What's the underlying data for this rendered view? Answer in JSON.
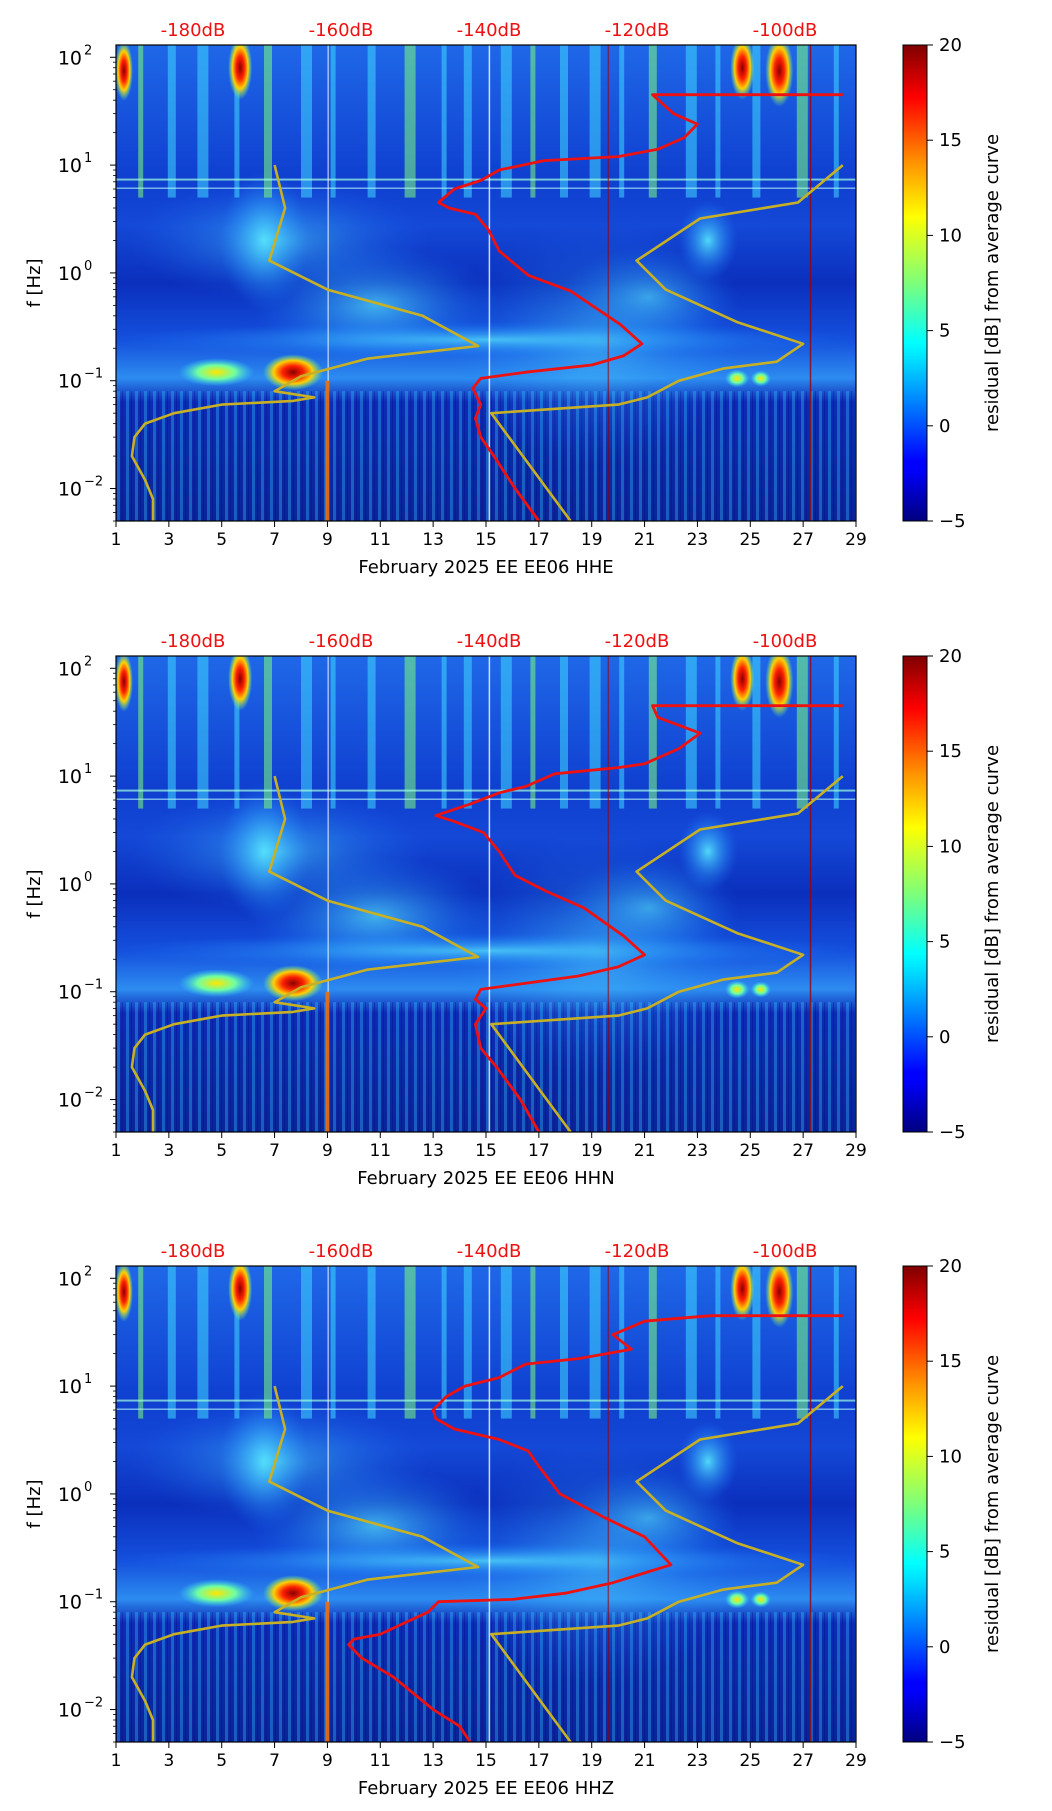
{
  "chart_data": [
    {
      "type": "heatmap",
      "title": "February 2025 EE EE06  HHE",
      "xlabel": "February 2025 EE EE06  HHE",
      "ylabel": "f [Hz]",
      "xlim": [
        1,
        29
      ],
      "ylim": [
        0.005,
        130
      ],
      "yscale": "log",
      "x_ticks": [
        "1",
        "3",
        "5",
        "7",
        "9",
        "11",
        "13",
        "15",
        "17",
        "19",
        "21",
        "23",
        "25",
        "27",
        "29"
      ],
      "y_ticks": [
        {
          "base": "10",
          "exp": "2"
        },
        {
          "base": "10",
          "exp": "1"
        },
        {
          "base": "10",
          "exp": "0"
        },
        {
          "base": "10",
          "exp": "−1"
        },
        {
          "base": "10",
          "exp": "−2"
        }
      ],
      "top_labels": [
        "-180dB",
        "-160dB",
        "-140dB",
        "-120dB",
        "-100dB"
      ],
      "colorbar": {
        "label": "residual [dB] from average curve",
        "ticks": [
          "20",
          "15",
          "10",
          "5",
          "0",
          "−5"
        ],
        "range": [
          -5,
          20
        ]
      },
      "series": [
        {
          "name": "average PSD curve",
          "color": "#ee1111",
          "points": [
            [
              28.5,
              45
            ],
            [
              21.3,
              45
            ],
            [
              22.1,
              30
            ],
            [
              23.0,
              24
            ],
            [
              22.5,
              18
            ],
            [
              21.5,
              14
            ],
            [
              20.0,
              12
            ],
            [
              17.2,
              11
            ],
            [
              15.5,
              9
            ],
            [
              14.8,
              7.2
            ],
            [
              13.8,
              6
            ],
            [
              13.2,
              4.5
            ],
            [
              13.6,
              4.0
            ],
            [
              14.6,
              3.5
            ],
            [
              15.1,
              2.5
            ],
            [
              15.5,
              1.6
            ],
            [
              16.6,
              0.95
            ],
            [
              18.2,
              0.68
            ],
            [
              20.1,
              0.33
            ],
            [
              20.9,
              0.22
            ],
            [
              20.2,
              0.17
            ],
            [
              19.0,
              0.14
            ],
            [
              16.5,
              0.12
            ],
            [
              14.8,
              0.105
            ],
            [
              14.5,
              0.085
            ],
            [
              14.8,
              0.06
            ],
            [
              14.6,
              0.045
            ],
            [
              14.8,
              0.03
            ],
            [
              15.3,
              0.02
            ],
            [
              16.1,
              0.01
            ],
            [
              17.0,
              0.005
            ]
          ]
        },
        {
          "name": "noise model",
          "color": "#c8b024",
          "points": [
            [
              7.0,
              10
            ],
            [
              7.4,
              4.0
            ],
            [
              6.8,
              1.3
            ],
            [
              9.0,
              0.7
            ],
            [
              12.6,
              0.4
            ],
            [
              14.7,
              0.21
            ],
            [
              10.5,
              0.16
            ],
            [
              8.0,
              0.11
            ],
            [
              7.0,
              0.08
            ],
            [
              8.5,
              0.07
            ],
            [
              7.7,
              0.065
            ],
            [
              5.0,
              0.06
            ],
            [
              3.2,
              0.05
            ],
            [
              2.1,
              0.04
            ],
            [
              1.7,
              0.03
            ],
            [
              1.6,
              0.02
            ],
            [
              2.1,
              0.012
            ],
            [
              2.4,
              0.008
            ],
            [
              2.4,
              0.005
            ]
          ]
        },
        {
          "name": "noise model (high)",
          "color": "#c8b024",
          "points": [
            [
              18.2,
              0.005
            ],
            [
              15.2,
              0.05
            ],
            [
              20.0,
              0.06
            ],
            [
              21.1,
              0.07
            ],
            [
              22.3,
              0.1
            ],
            [
              24.0,
              0.13
            ],
            [
              26.0,
              0.15
            ],
            [
              27.0,
              0.22
            ],
            [
              24.5,
              0.35
            ],
            [
              21.8,
              0.7
            ],
            [
              20.7,
              1.3
            ],
            [
              23.1,
              3.2
            ],
            [
              26.8,
              4.5
            ],
            [
              28.5,
              10
            ]
          ]
        }
      ]
    },
    {
      "type": "heatmap",
      "title": "February 2025 EE EE06  HHN",
      "xlabel": "February 2025 EE EE06  HHN",
      "ylabel": "f [Hz]",
      "xlim": [
        1,
        29
      ],
      "ylim": [
        0.005,
        130
      ],
      "yscale": "log",
      "x_ticks": [
        "1",
        "3",
        "5",
        "7",
        "9",
        "11",
        "13",
        "15",
        "17",
        "19",
        "21",
        "23",
        "25",
        "27",
        "29"
      ],
      "y_ticks": [
        {
          "base": "10",
          "exp": "2"
        },
        {
          "base": "10",
          "exp": "1"
        },
        {
          "base": "10",
          "exp": "0"
        },
        {
          "base": "10",
          "exp": "−1"
        },
        {
          "base": "10",
          "exp": "−2"
        }
      ],
      "top_labels": [
        "-180dB",
        "-160dB",
        "-140dB",
        "-120dB",
        "-100dB"
      ],
      "colorbar": {
        "label": "residual [dB] from average curve",
        "ticks": [
          "20",
          "15",
          "10",
          "5",
          "0",
          "−5"
        ],
        "range": [
          -5,
          20
        ]
      },
      "series": [
        {
          "name": "average PSD curve",
          "color": "#ee1111",
          "points": [
            [
              28.5,
              45
            ],
            [
              21.3,
              45
            ],
            [
              21.5,
              35
            ],
            [
              23.1,
              25
            ],
            [
              22.3,
              18
            ],
            [
              21.0,
              13
            ],
            [
              20.0,
              12
            ],
            [
              17.6,
              10.5
            ],
            [
              16.5,
              8
            ],
            [
              15.5,
              7
            ],
            [
              14.4,
              5.5
            ],
            [
              13.1,
              4.3
            ],
            [
              13.8,
              3.8
            ],
            [
              14.9,
              3.0
            ],
            [
              15.5,
              2.0
            ],
            [
              16.1,
              1.2
            ],
            [
              17.3,
              0.85
            ],
            [
              18.7,
              0.6
            ],
            [
              20.2,
              0.33
            ],
            [
              21.0,
              0.22
            ],
            [
              20.0,
              0.17
            ],
            [
              18.5,
              0.14
            ],
            [
              16.5,
              0.12
            ],
            [
              14.8,
              0.105
            ],
            [
              14.6,
              0.085
            ],
            [
              15.0,
              0.07
            ],
            [
              14.6,
              0.05
            ],
            [
              14.8,
              0.03
            ],
            [
              15.4,
              0.02
            ],
            [
              16.3,
              0.01
            ],
            [
              17.0,
              0.005
            ]
          ]
        },
        {
          "name": "noise model",
          "color": "#c8b024",
          "points": [
            [
              7.0,
              10
            ],
            [
              7.4,
              4.0
            ],
            [
              6.8,
              1.3
            ],
            [
              9.0,
              0.7
            ],
            [
              12.6,
              0.4
            ],
            [
              14.7,
              0.21
            ],
            [
              10.5,
              0.16
            ],
            [
              8.0,
              0.11
            ],
            [
              7.0,
              0.08
            ],
            [
              8.5,
              0.07
            ],
            [
              7.7,
              0.065
            ],
            [
              5.0,
              0.06
            ],
            [
              3.2,
              0.05
            ],
            [
              2.1,
              0.04
            ],
            [
              1.7,
              0.03
            ],
            [
              1.6,
              0.02
            ],
            [
              2.1,
              0.012
            ],
            [
              2.4,
              0.008
            ],
            [
              2.4,
              0.005
            ]
          ]
        },
        {
          "name": "noise model (high)",
          "color": "#c8b024",
          "points": [
            [
              18.2,
              0.005
            ],
            [
              15.2,
              0.05
            ],
            [
              20.0,
              0.06
            ],
            [
              21.1,
              0.07
            ],
            [
              22.3,
              0.1
            ],
            [
              24.0,
              0.13
            ],
            [
              26.0,
              0.15
            ],
            [
              27.0,
              0.22
            ],
            [
              24.5,
              0.35
            ],
            [
              21.8,
              0.7
            ],
            [
              20.7,
              1.3
            ],
            [
              23.1,
              3.2
            ],
            [
              26.8,
              4.5
            ],
            [
              28.5,
              10
            ]
          ]
        }
      ]
    },
    {
      "type": "heatmap",
      "title": "February 2025 EE EE06  HHZ",
      "xlabel": "February 2025 EE EE06  HHZ",
      "ylabel": "f [Hz]",
      "xlim": [
        1,
        29
      ],
      "ylim": [
        0.005,
        130
      ],
      "yscale": "log",
      "x_ticks": [
        "1",
        "3",
        "5",
        "7",
        "9",
        "11",
        "13",
        "15",
        "17",
        "19",
        "21",
        "23",
        "25",
        "27",
        "29"
      ],
      "y_ticks": [
        {
          "base": "10",
          "exp": "2"
        },
        {
          "base": "10",
          "exp": "1"
        },
        {
          "base": "10",
          "exp": "0"
        },
        {
          "base": "10",
          "exp": "−1"
        },
        {
          "base": "10",
          "exp": "−2"
        }
      ],
      "top_labels": [
        "-180dB",
        "-160dB",
        "-140dB",
        "-120dB",
        "-100dB"
      ],
      "colorbar": {
        "label": "residual [dB] from average curve",
        "ticks": [
          "20",
          "15",
          "10",
          "5",
          "0",
          "−5"
        ],
        "range": [
          -5,
          20
        ]
      },
      "series": [
        {
          "name": "average PSD curve",
          "color": "#ee1111",
          "points": [
            [
              28.5,
              45
            ],
            [
              23.5,
              45
            ],
            [
              21.0,
              40
            ],
            [
              19.8,
              30
            ],
            [
              20.5,
              22
            ],
            [
              18.5,
              18
            ],
            [
              16.5,
              16
            ],
            [
              15.5,
              12
            ],
            [
              14.2,
              10
            ],
            [
              13.5,
              8
            ],
            [
              13.0,
              6
            ],
            [
              13.1,
              5.0
            ],
            [
              13.8,
              4.0
            ],
            [
              15.5,
              3.2
            ],
            [
              16.6,
              2.5
            ],
            [
              17.0,
              1.8
            ],
            [
              17.8,
              1.0
            ],
            [
              19.5,
              0.6
            ],
            [
              21.0,
              0.4
            ],
            [
              22.0,
              0.22
            ],
            [
              19.8,
              0.15
            ],
            [
              18.0,
              0.12
            ],
            [
              16.0,
              0.105
            ],
            [
              13.2,
              0.1
            ],
            [
              12.8,
              0.08
            ],
            [
              12.0,
              0.065
            ],
            [
              11.0,
              0.05
            ],
            [
              10.0,
              0.045
            ],
            [
              9.8,
              0.04
            ],
            [
              10.3,
              0.03
            ],
            [
              11.5,
              0.02
            ],
            [
              13.0,
              0.01
            ],
            [
              14.0,
              0.007
            ],
            [
              14.4,
              0.005
            ]
          ]
        },
        {
          "name": "noise model",
          "color": "#c8b024",
          "points": [
            [
              7.0,
              10
            ],
            [
              7.4,
              4.0
            ],
            [
              6.8,
              1.3
            ],
            [
              9.0,
              0.7
            ],
            [
              12.6,
              0.4
            ],
            [
              14.7,
              0.21
            ],
            [
              10.5,
              0.16
            ],
            [
              8.0,
              0.11
            ],
            [
              7.0,
              0.08
            ],
            [
              8.5,
              0.07
            ],
            [
              7.7,
              0.065
            ],
            [
              5.0,
              0.06
            ],
            [
              3.2,
              0.05
            ],
            [
              2.1,
              0.04
            ],
            [
              1.7,
              0.03
            ],
            [
              1.6,
              0.02
            ],
            [
              2.1,
              0.012
            ],
            [
              2.4,
              0.008
            ],
            [
              2.4,
              0.005
            ]
          ]
        },
        {
          "name": "noise model (high)",
          "color": "#c8b024",
          "points": [
            [
              18.2,
              0.005
            ],
            [
              15.2,
              0.05
            ],
            [
              20.0,
              0.06
            ],
            [
              21.1,
              0.07
            ],
            [
              22.3,
              0.1
            ],
            [
              24.0,
              0.13
            ],
            [
              26.0,
              0.15
            ],
            [
              27.0,
              0.22
            ],
            [
              24.5,
              0.35
            ],
            [
              21.8,
              0.7
            ],
            [
              20.7,
              1.3
            ],
            [
              23.1,
              3.2
            ],
            [
              26.8,
              4.5
            ],
            [
              28.5,
              10
            ]
          ]
        }
      ]
    }
  ],
  "colors": {
    "top_label": "#ee1111",
    "axis": "#000000"
  }
}
